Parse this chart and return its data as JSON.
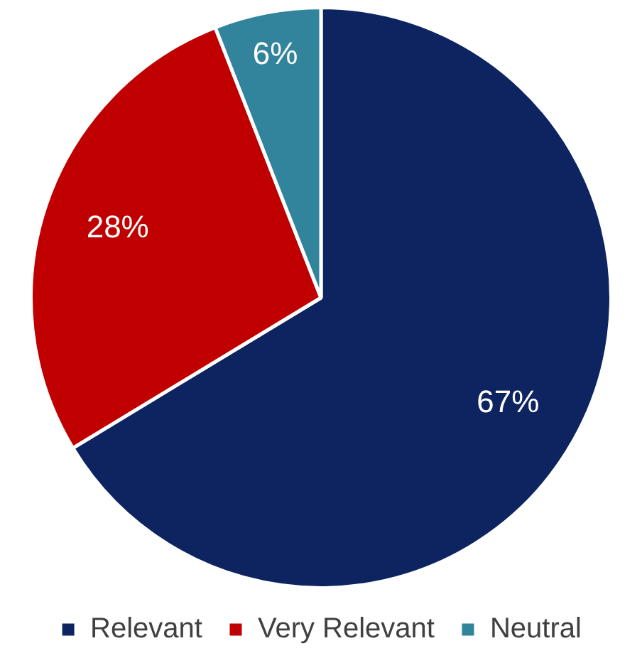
{
  "chart_data": {
    "type": "pie",
    "categories": [
      "Relevant",
      "Very Relevant",
      "Neutral"
    ],
    "values": [
      67,
      28,
      6
    ],
    "colors": [
      "#0d2461",
      "#c00000",
      "#31849b"
    ],
    "value_labels": [
      "67%",
      "28%",
      "6%"
    ],
    "legend": "bottom"
  }
}
